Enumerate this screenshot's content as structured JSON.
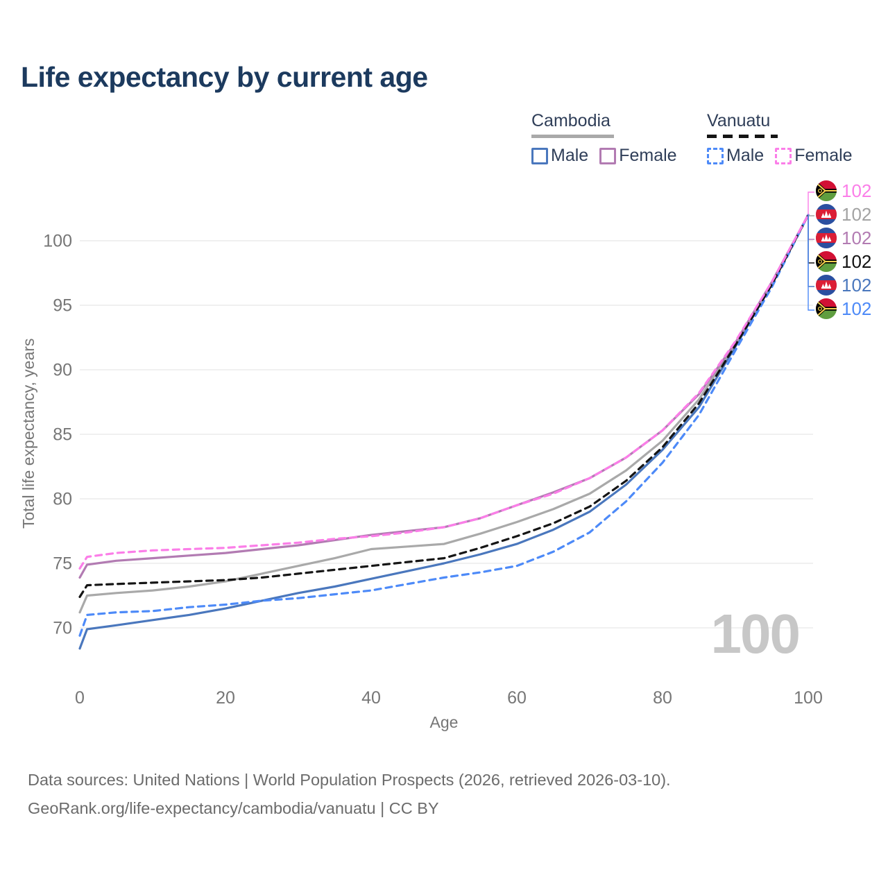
{
  "title": "Life expectancy by current age",
  "legend": {
    "groups": [
      {
        "id": "cambodia",
        "label": "Cambodia",
        "line_style": "solid",
        "line_color": "#a9a9a9",
        "items": [
          {
            "label": "Male",
            "color": "#4a77bd",
            "style": "solid"
          },
          {
            "label": "Female",
            "color": "#b27bb2",
            "style": "solid"
          }
        ]
      },
      {
        "id": "vanuatu",
        "label": "Vanuatu",
        "line_style": "dashed",
        "line_color": "#151515",
        "items": [
          {
            "label": "Male",
            "color": "#4d8af8",
            "style": "dashed"
          },
          {
            "label": "Female",
            "color": "#fb7ee8",
            "style": "dashed"
          }
        ]
      }
    ]
  },
  "chart_data": {
    "type": "line",
    "title": "Life expectancy by current age",
    "xlabel": "Age",
    "ylabel": "Total life expectancy, years",
    "x_ticks": [
      0,
      20,
      40,
      60,
      80,
      100
    ],
    "y_ticks": [
      70,
      75,
      80,
      85,
      90,
      95,
      100
    ],
    "xlim": [
      0,
      100
    ],
    "ylim": [
      68,
      103
    ],
    "grid": true,
    "legend_position": "top-right",
    "age_counter": "100",
    "series": [
      {
        "name": "Cambodia Male",
        "country": "cambodia",
        "sex": "male",
        "color": "#4a77bd",
        "dash": "solid",
        "points": [
          [
            0,
            68.4
          ],
          [
            1,
            69.9
          ],
          [
            5,
            70.2
          ],
          [
            10,
            70.6
          ],
          [
            15,
            71.0
          ],
          [
            20,
            71.5
          ],
          [
            25,
            72.1
          ],
          [
            30,
            72.7
          ],
          [
            35,
            73.2
          ],
          [
            40,
            73.8
          ],
          [
            45,
            74.4
          ],
          [
            50,
            75.0
          ],
          [
            55,
            75.7
          ],
          [
            60,
            76.5
          ],
          [
            65,
            77.6
          ],
          [
            70,
            79.0
          ],
          [
            75,
            81.1
          ],
          [
            80,
            83.8
          ],
          [
            85,
            87.1
          ],
          [
            90,
            91.8
          ],
          [
            95,
            96.6
          ],
          [
            100,
            102
          ]
        ]
      },
      {
        "name": "Cambodia (both sexes)",
        "country": "cambodia",
        "sex": "all",
        "color": "#a9a9a9",
        "dash": "solid",
        "points": [
          [
            0,
            71.2
          ],
          [
            1,
            72.5
          ],
          [
            5,
            72.7
          ],
          [
            10,
            72.9
          ],
          [
            15,
            73.2
          ],
          [
            20,
            73.6
          ],
          [
            25,
            74.2
          ],
          [
            30,
            74.8
          ],
          [
            35,
            75.4
          ],
          [
            40,
            76.1
          ],
          [
            45,
            76.3
          ],
          [
            50,
            76.5
          ],
          [
            55,
            77.3
          ],
          [
            60,
            78.2
          ],
          [
            65,
            79.2
          ],
          [
            70,
            80.4
          ],
          [
            75,
            82.2
          ],
          [
            80,
            84.5
          ],
          [
            85,
            87.7
          ],
          [
            90,
            92.0
          ],
          [
            95,
            96.7
          ],
          [
            100,
            102
          ]
        ]
      },
      {
        "name": "Cambodia Female",
        "country": "cambodia",
        "sex": "female",
        "color": "#b27bb2",
        "dash": "solid",
        "points": [
          [
            0,
            73.9
          ],
          [
            1,
            74.9
          ],
          [
            5,
            75.2
          ],
          [
            10,
            75.4
          ],
          [
            15,
            75.6
          ],
          [
            20,
            75.8
          ],
          [
            25,
            76.1
          ],
          [
            30,
            76.4
          ],
          [
            35,
            76.8
          ],
          [
            40,
            77.2
          ],
          [
            45,
            77.5
          ],
          [
            50,
            77.8
          ],
          [
            55,
            78.5
          ],
          [
            60,
            79.5
          ],
          [
            65,
            80.5
          ],
          [
            70,
            81.6
          ],
          [
            75,
            83.2
          ],
          [
            80,
            85.3
          ],
          [
            85,
            88.1
          ],
          [
            90,
            92.1
          ],
          [
            95,
            96.8
          ],
          [
            100,
            102
          ]
        ]
      },
      {
        "name": "Vanuatu Male",
        "country": "vanuatu",
        "sex": "male",
        "color": "#4d8af8",
        "dash": "dashed",
        "points": [
          [
            0,
            69.4
          ],
          [
            1,
            71.0
          ],
          [
            5,
            71.2
          ],
          [
            10,
            71.3
          ],
          [
            15,
            71.6
          ],
          [
            20,
            71.8
          ],
          [
            25,
            72.1
          ],
          [
            30,
            72.3
          ],
          [
            35,
            72.6
          ],
          [
            40,
            72.9
          ],
          [
            45,
            73.4
          ],
          [
            50,
            73.9
          ],
          [
            55,
            74.3
          ],
          [
            60,
            74.8
          ],
          [
            65,
            75.9
          ],
          [
            70,
            77.4
          ],
          [
            75,
            79.8
          ],
          [
            80,
            82.8
          ],
          [
            85,
            86.5
          ],
          [
            90,
            91.5
          ],
          [
            95,
            96.4
          ],
          [
            100,
            102
          ]
        ]
      },
      {
        "name": "Vanuatu (both sexes)",
        "country": "vanuatu",
        "sex": "all",
        "color": "#151515",
        "dash": "dashed",
        "points": [
          [
            0,
            72.4
          ],
          [
            1,
            73.3
          ],
          [
            5,
            73.4
          ],
          [
            10,
            73.5
          ],
          [
            15,
            73.6
          ],
          [
            20,
            73.7
          ],
          [
            25,
            73.9
          ],
          [
            30,
            74.2
          ],
          [
            35,
            74.5
          ],
          [
            40,
            74.8
          ],
          [
            45,
            75.1
          ],
          [
            50,
            75.4
          ],
          [
            55,
            76.2
          ],
          [
            60,
            77.1
          ],
          [
            65,
            78.1
          ],
          [
            70,
            79.4
          ],
          [
            75,
            81.4
          ],
          [
            80,
            84.0
          ],
          [
            85,
            87.4
          ],
          [
            90,
            91.9
          ],
          [
            95,
            96.6
          ],
          [
            100,
            102
          ]
        ]
      },
      {
        "name": "Vanuatu Female",
        "country": "vanuatu",
        "sex": "female",
        "color": "#fb7ee8",
        "dash": "dashed",
        "points": [
          [
            0,
            74.6
          ],
          [
            1,
            75.5
          ],
          [
            5,
            75.8
          ],
          [
            10,
            76.0
          ],
          [
            15,
            76.1
          ],
          [
            20,
            76.2
          ],
          [
            25,
            76.4
          ],
          [
            30,
            76.6
          ],
          [
            35,
            76.9
          ],
          [
            40,
            77.1
          ],
          [
            45,
            77.4
          ],
          [
            50,
            77.8
          ],
          [
            55,
            78.5
          ],
          [
            60,
            79.5
          ],
          [
            65,
            80.4
          ],
          [
            70,
            81.6
          ],
          [
            75,
            83.2
          ],
          [
            80,
            85.3
          ],
          [
            85,
            88.2
          ],
          [
            90,
            92.2
          ],
          [
            95,
            96.8
          ],
          [
            100,
            102
          ]
        ]
      }
    ],
    "end_labels": [
      {
        "flag": "vanuatu",
        "series": "Vanuatu Female",
        "value": "102",
        "color": "#fb7ee8"
      },
      {
        "flag": "cambodia",
        "series": "Cambodia (both sexes)",
        "value": "102",
        "color": "#a3a3a3"
      },
      {
        "flag": "cambodia",
        "series": "Cambodia Female",
        "value": "102",
        "color": "#b27bb2"
      },
      {
        "flag": "vanuatu",
        "series": "Vanuatu (both sexes)",
        "value": "102",
        "color": "#111111"
      },
      {
        "flag": "cambodia",
        "series": "Cambodia Male",
        "value": "102",
        "color": "#4a77bd"
      },
      {
        "flag": "vanuatu",
        "series": "Vanuatu Male",
        "value": "102",
        "color": "#4d8af8"
      }
    ]
  },
  "footer": {
    "line1": "Data sources: United Nations | World Population Prospects (2026, retrieved 2026-03-10).",
    "line2": "GeoRank.org/life-expectancy/cambodia/vanuatu | CC BY"
  }
}
